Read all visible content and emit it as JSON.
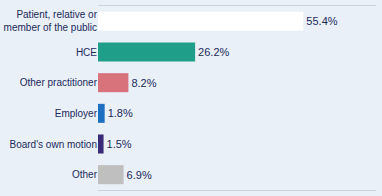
{
  "chart_data": {
    "type": "bar",
    "orientation": "horizontal",
    "categories": [
      "Patient, relative or member of the public",
      "HCE",
      "Other practitioner",
      "Employer",
      "Board's own motion",
      "Other"
    ],
    "values": [
      55.4,
      26.2,
      8.2,
      1.8,
      1.5,
      6.9
    ],
    "value_labels": [
      "55.4%",
      "26.2%",
      "8.2%",
      "1.8%",
      "1.5%",
      "6.9%"
    ],
    "colors": [
      "#ffffff",
      "#1f9e8a",
      "#d9737b",
      "#1f6fc0",
      "#3a2a78",
      "#bfbfbf"
    ],
    "xlim": [
      0,
      75
    ],
    "xticks": [],
    "data_labels": true,
    "tick_labels": "y",
    "grid": false
  }
}
